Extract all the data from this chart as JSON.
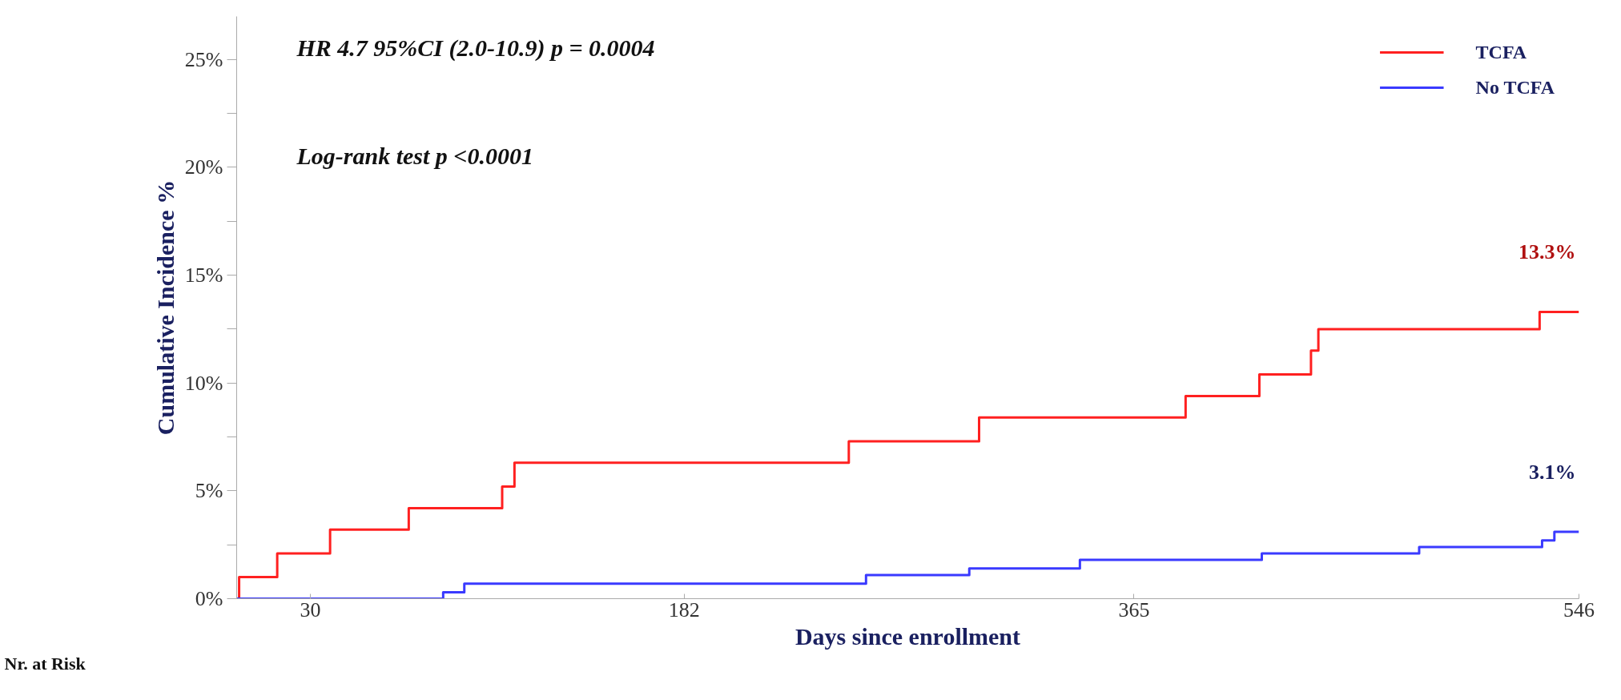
{
  "chart_data": {
    "type": "step",
    "xlabel": "Days since enrollment",
    "ylabel": "Cumulative Incidence %",
    "xlim": [
      0,
      546
    ],
    "xticks": [
      30,
      182,
      365,
      546
    ],
    "ylim": [
      0,
      27
    ],
    "yticks": [
      {
        "value": 0,
        "label": "0%"
      },
      {
        "value": 2.5,
        "label": null
      },
      {
        "value": 5,
        "label": "5%"
      },
      {
        "value": 7.5,
        "label": null
      },
      {
        "value": 10,
        "label": "10%"
      },
      {
        "value": 12.5,
        "label": null
      },
      {
        "value": 15,
        "label": "15%"
      },
      {
        "value": 17.5,
        "label": null
      },
      {
        "value": 20,
        "label": "20%"
      },
      {
        "value": 22.5,
        "label": null
      },
      {
        "value": 25,
        "label": "25%"
      }
    ],
    "series": [
      {
        "name": "TCFA",
        "color": "#ff2020",
        "x": [
          0,
          1,
          16.5,
          38,
          70,
          108,
          113,
          249,
          302,
          386,
          416,
          437,
          440,
          530,
          546
        ],
        "values": [
          0,
          1.0,
          2.1,
          3.2,
          4.2,
          5.2,
          6.3,
          7.3,
          8.4,
          9.4,
          10.4,
          11.5,
          12.5,
          13.3,
          13.3
        ]
      },
      {
        "name": "No TCFA",
        "color": "#3a3aff",
        "x": [
          0,
          84,
          92.6,
          256,
          298,
          343,
          417,
          481,
          531,
          536,
          546
        ],
        "values": [
          0,
          0.3,
          0.7,
          1.1,
          1.4,
          1.8,
          2.1,
          2.4,
          2.7,
          3.1,
          3.1
        ]
      }
    ],
    "annotations": [
      "HR 4.7 95%CI (2.0-10.9) p = 0.0004",
      "Log-rank test p <0.0001",
      {
        "text": "13.3%",
        "x": 546,
        "y": 13.3
      },
      {
        "text": "3.1%",
        "x": 546,
        "y": 3.1
      },
      "Nr. at Risk"
    ],
    "legend": "top right",
    "grid": false,
    "line_style": "solid",
    "marker": "none"
  }
}
